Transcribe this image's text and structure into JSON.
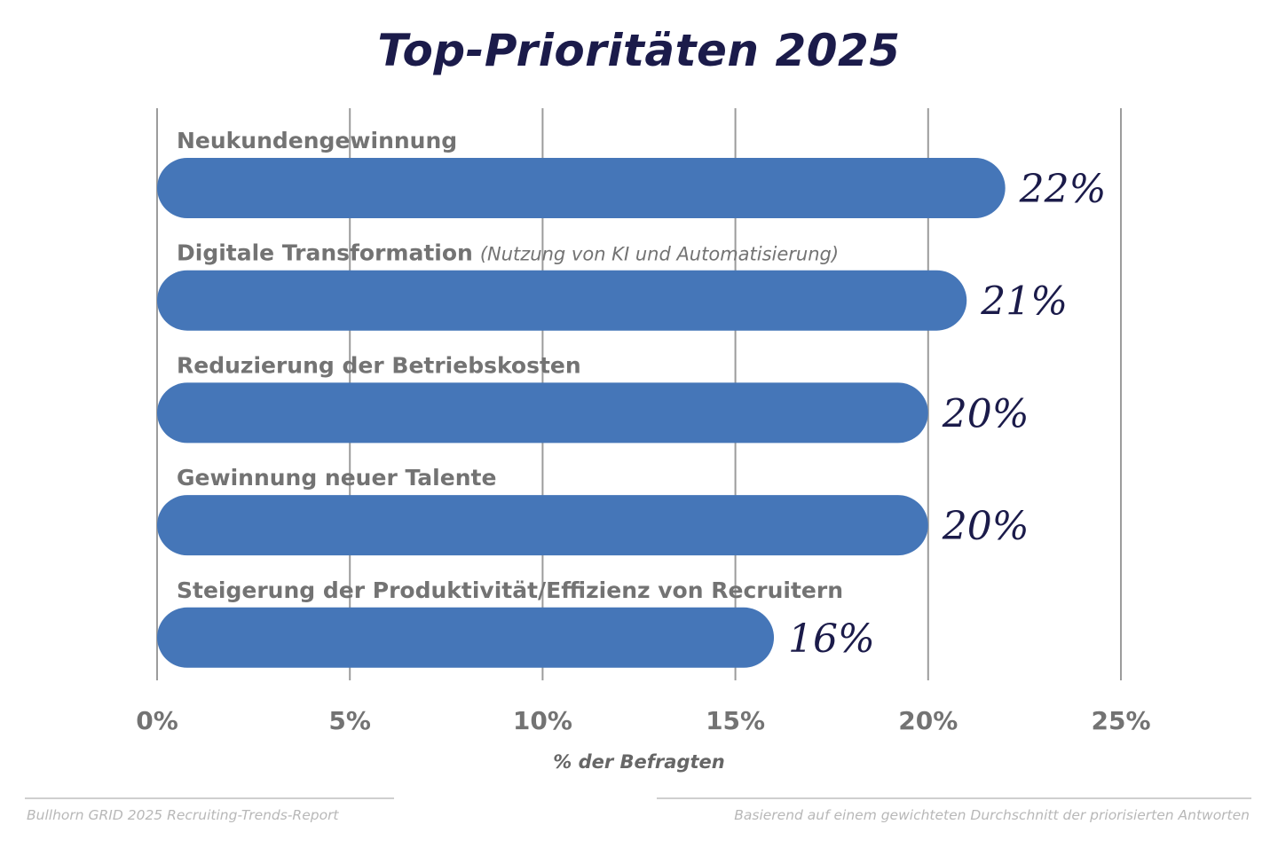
{
  "chart_data": {
    "type": "bar",
    "orientation": "horizontal",
    "title": "Top-Prioritäten 2025",
    "categories": [
      {
        "label": "Neukundengewinnung",
        "sublabel": ""
      },
      {
        "label": "Digitale Transformation",
        "sublabel": "(Nutzung von KI und Automatisierung)"
      },
      {
        "label": "Reduzierung der Betriebskosten",
        "sublabel": ""
      },
      {
        "label": "Gewinnung neuer Talente",
        "sublabel": ""
      },
      {
        "label": "Steigerung der Produktivität/Effizienz von Recruitern",
        "sublabel": ""
      }
    ],
    "values": [
      22,
      21,
      20,
      20,
      16
    ],
    "value_labels": [
      "22%",
      "21%",
      "20%",
      "20%",
      "16%"
    ],
    "xlabel": "% der Befragten",
    "xlim": [
      0,
      25
    ],
    "xticks": [
      "0%",
      "5%",
      "10%",
      "15%",
      "20%",
      "25%"
    ],
    "grid": "vertical",
    "bar_color": "#4576b8"
  },
  "footer": {
    "source": "Bullhorn GRID 2025 Recruiting-Trends-Report",
    "note": "Basierend auf einem gewichteten Durchschnitt der priorisierten Antworten"
  }
}
